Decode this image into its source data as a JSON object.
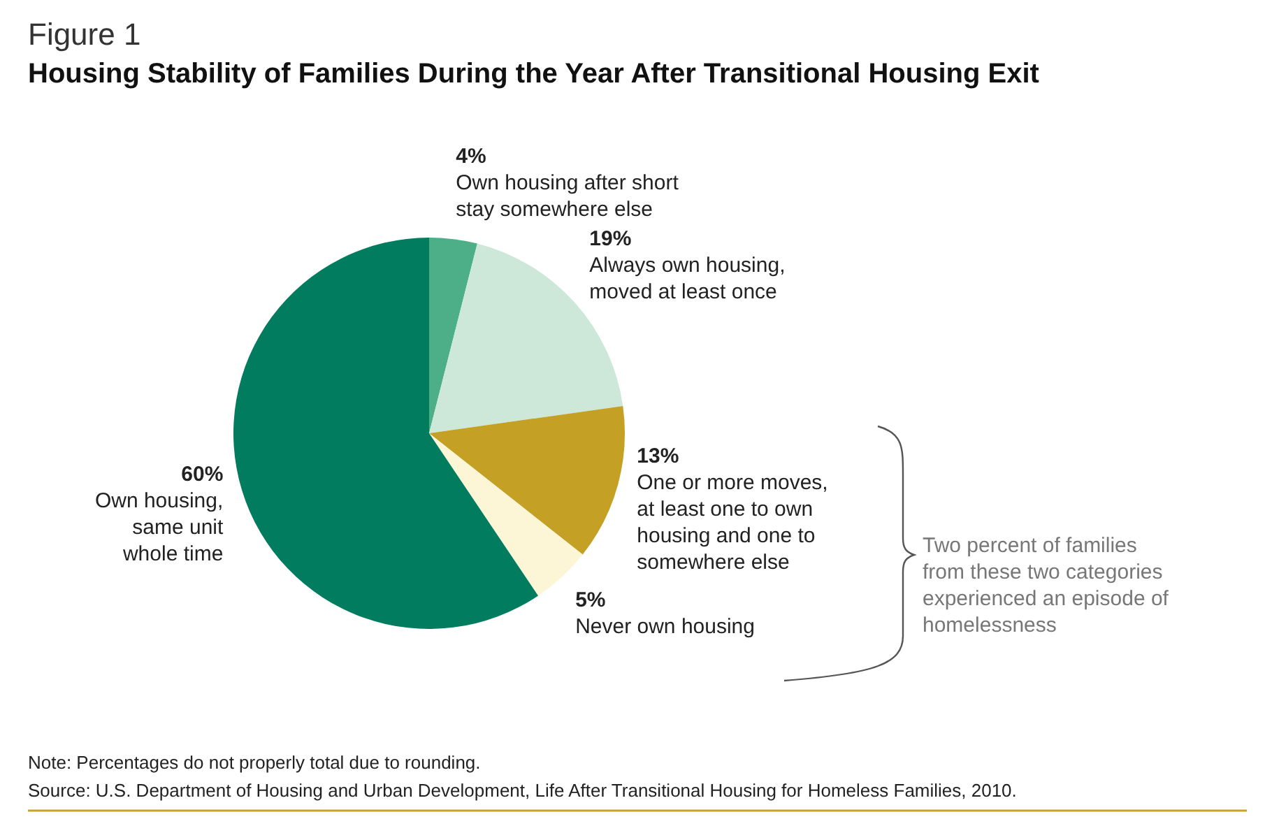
{
  "chart_data": {
    "type": "pie",
    "title": "Figure 1",
    "subtitle": "Housing Stability of Families During the Year After Transitional Housing Exit",
    "categories": [
      "Own housing after short stay somewhere else",
      "Always own housing, moved at least once",
      "One or more moves, at least one to own housing and one to somewhere else",
      "Never own housing",
      "Own housing, same unit whole time"
    ],
    "values": [
      4,
      19,
      13,
      5,
      60
    ],
    "value_labels": [
      "4%",
      "19%",
      "13%",
      "5%",
      "60%"
    ],
    "colors": [
      "#4caf87",
      "#cde8d8",
      "#c4a124",
      "#fcf6d6",
      "#017c5f"
    ],
    "annotations": [
      "Two percent of families from these two categories experienced an episode of homelessness",
      "Note: Percentages do not properly total due to rounding.",
      "Source: U.S. Department of Housing and Urban Development, Life After Transitional Housing for Homeless Families, 2010."
    ]
  }
}
